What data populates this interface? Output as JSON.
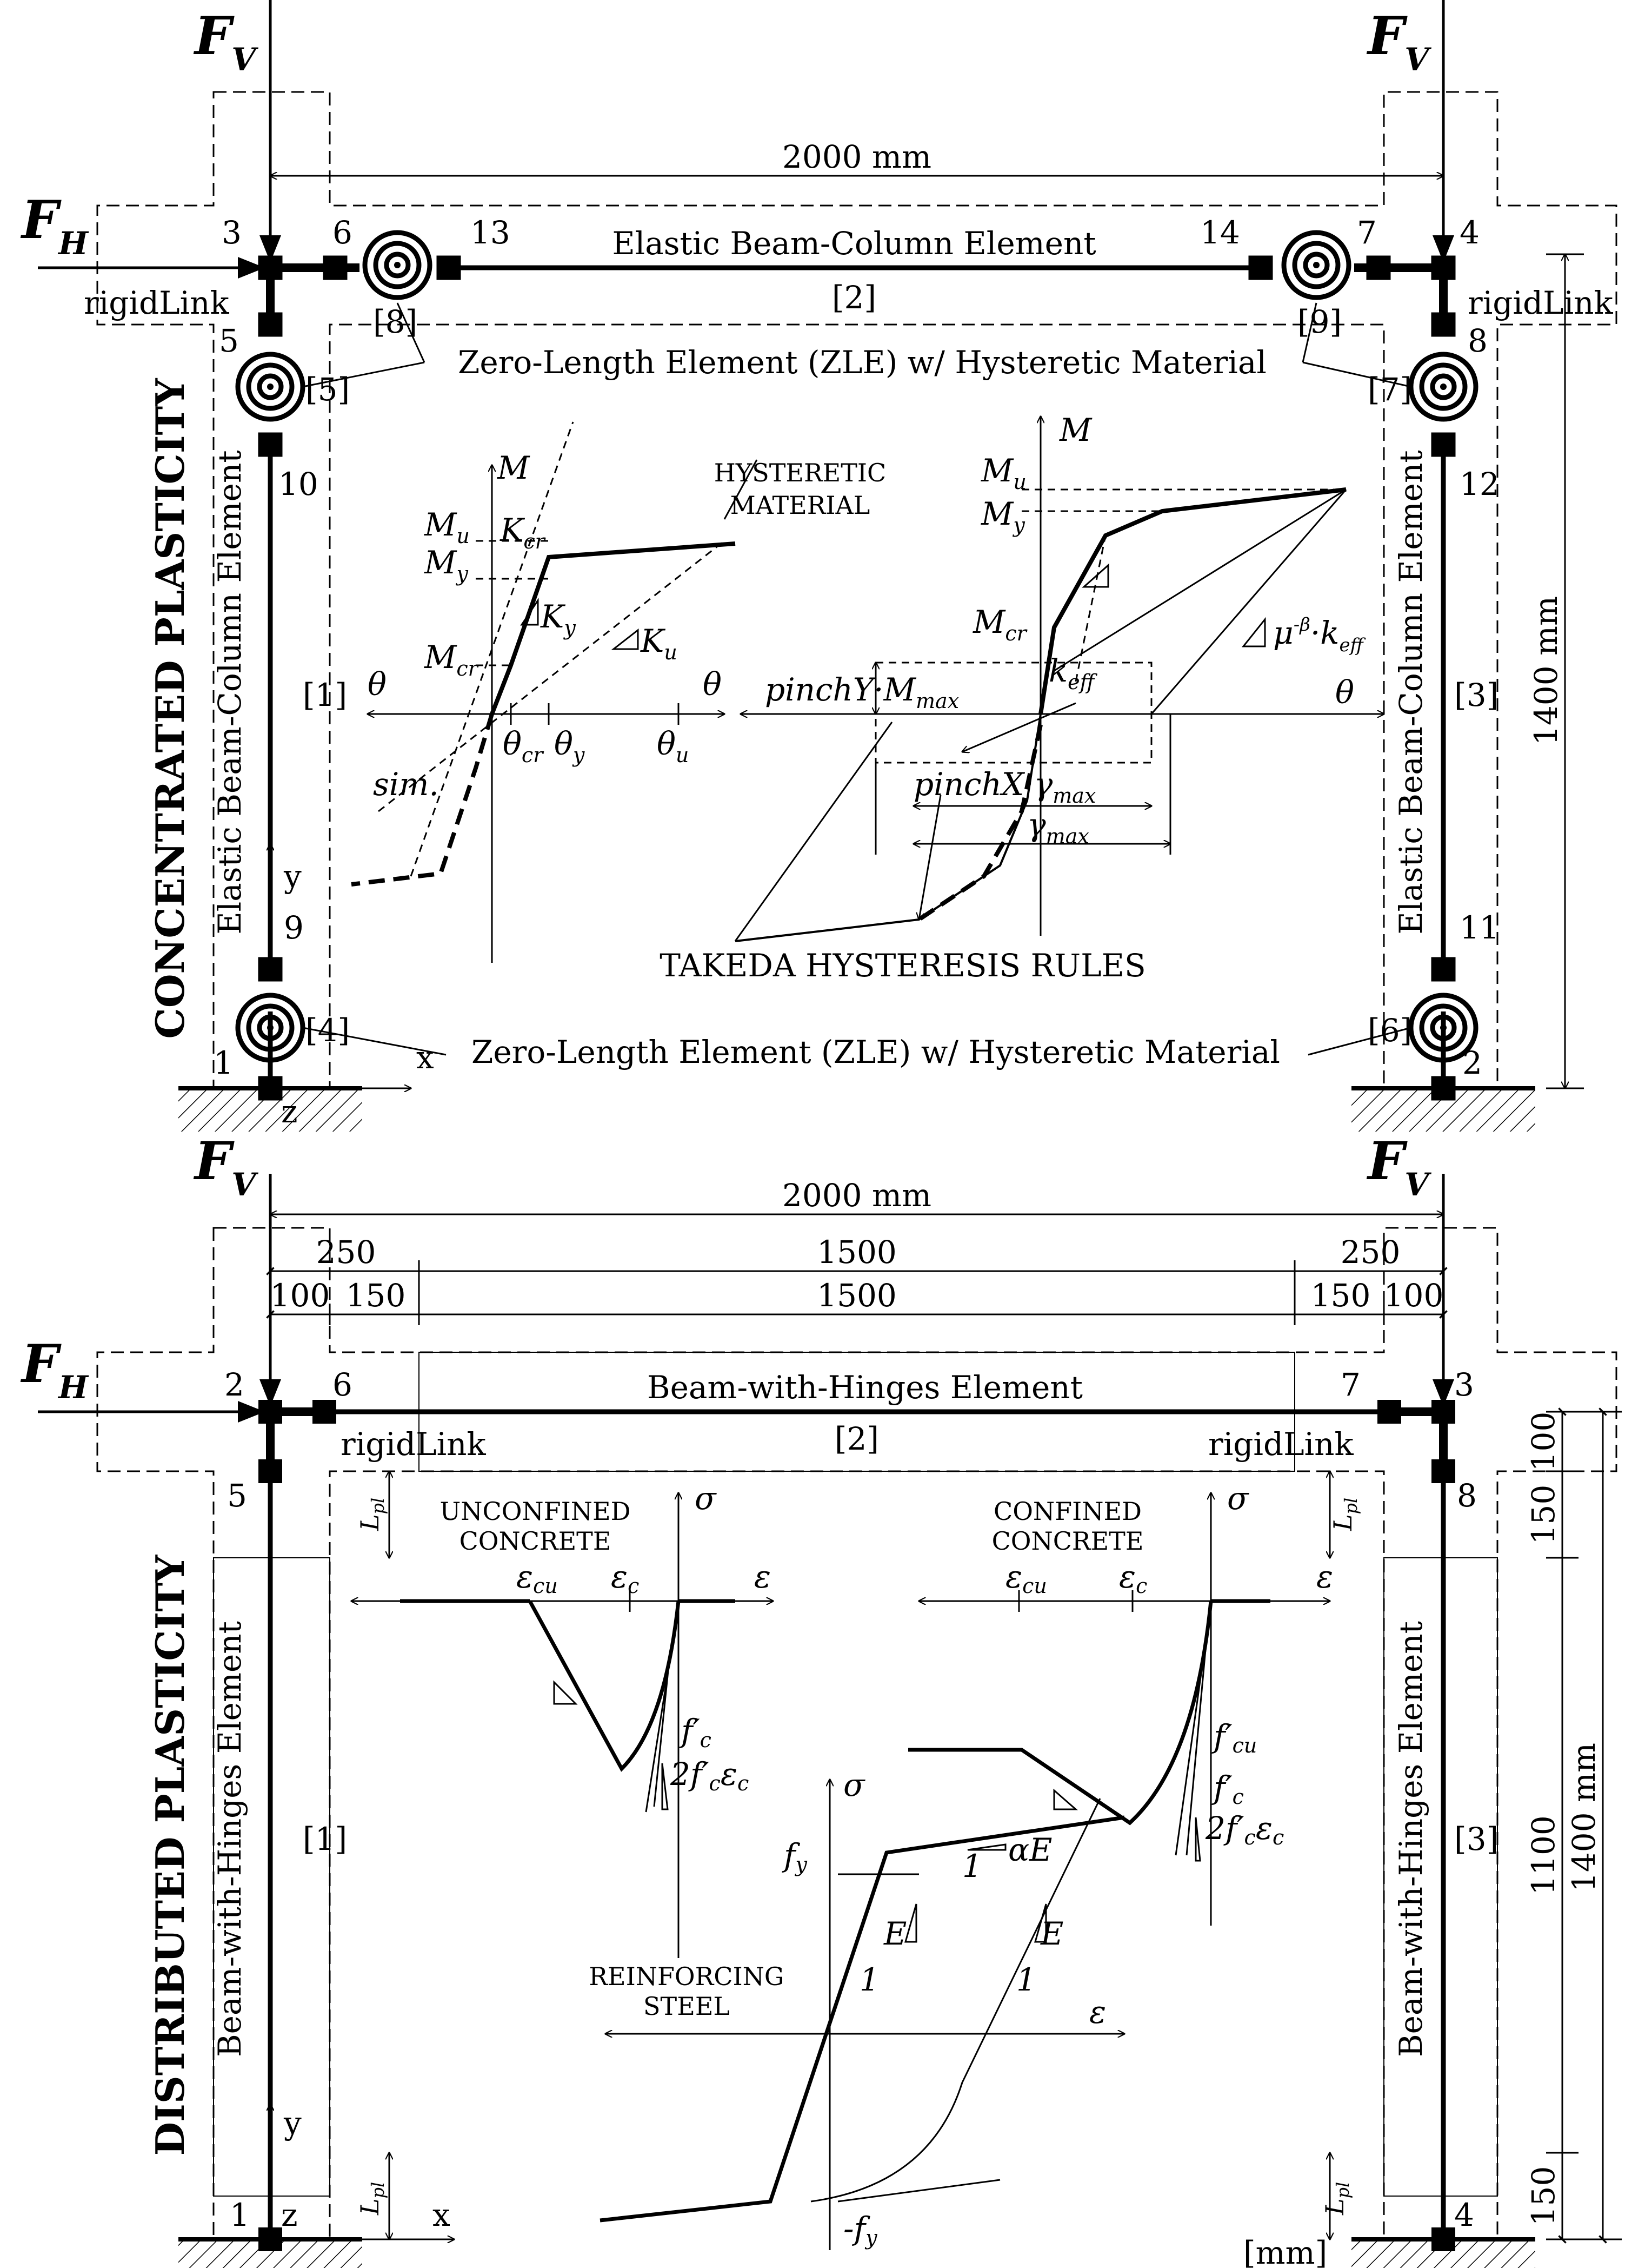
{
  "top": {
    "force_v_left": "F",
    "force_v_right": "F",
    "force_v_sub": "V",
    "force_h": "F",
    "force_h_sub": "H",
    "span_label": "2000 mm",
    "height_label": "1400 mm",
    "side_title": "CONCENTRATED PLASTICITY",
    "beam_label": "Elastic Beam-Column Element",
    "beam_tag": "[2]",
    "column_left_label": "Elastic Beam-Column Element",
    "column_right_label": "Elastic Beam-Column Element",
    "column_left_tag": "[1]",
    "column_right_tag": "[3]",
    "rigid_left": "rigidLink",
    "rigid_right": "rigidLink",
    "zle_top_label": "Zero-Length Element (ZLE) w/ Hysteretic Material",
    "zle_bottom_label": "Zero-Length Element (ZLE) w/ Hysteretic Material",
    "nodes": [
      "1",
      "2",
      "3",
      "4",
      "5",
      "6",
      "7",
      "8",
      "9",
      "10",
      "11",
      "12",
      "13",
      "14"
    ],
    "spring_tags": [
      "[4]",
      "[5]",
      "[6]",
      "[7]",
      "[8]",
      "[9]"
    ],
    "axis_x": "x",
    "axis_y": "y",
    "axis_z": "z",
    "hysteretic": {
      "title_line1": "HYSTERETIC",
      "title_line2": "MATERIAL",
      "axis_m": "M",
      "theta": "θ",
      "mu": "M",
      "mu_sub": "u",
      "my": "M",
      "my_sub": "y",
      "mcr": "M",
      "mcr_sub": "cr",
      "kcr": "K",
      "kcr_sub": "cr",
      "ky": "K",
      "ky_sub": "y",
      "ku": "K",
      "ku_sub": "u",
      "theta_cr_sub": "cr",
      "theta_y_sub": "y",
      "theta_u_sub": "u",
      "sim": "sim."
    },
    "takeda": {
      "title": "TAKEDA HYSTERESIS RULES",
      "axis_m": "M",
      "theta": "θ",
      "pinch_y": "pinchY·M",
      "pinch_y_sub": "max",
      "pinch_x": "pinchX·γ",
      "pinch_x_sub": "max",
      "gamma": "γ",
      "gamma_sub": "max",
      "k_eff": "k",
      "k_eff_sub": "eff",
      "degrade": "μ",
      "degrade_sup": "-β",
      "degrade_tail": "·k",
      "degrade_sub": "eff",
      "mu": "M",
      "mu_sub": "u",
      "my": "M",
      "my_sub": "y",
      "mcr": "M",
      "mcr_sub": "cr"
    }
  },
  "bottom": {
    "force_v_left": "F",
    "force_v_right": "F",
    "force_v_sub": "V",
    "force_h": "F",
    "force_h_sub": "H",
    "span_label": "2000 mm",
    "dims_row1": [
      "250",
      "1500",
      "250"
    ],
    "dims_row2": [
      "100",
      "150",
      "1500",
      "150",
      "100"
    ],
    "height_label": "1400 mm",
    "height_dims": [
      "100",
      "150",
      "1100",
      "150"
    ],
    "units": "[mm]",
    "side_title": "DISTRIBUTED PLASTICITY",
    "beam_label": "Beam-with-Hinges Element",
    "beam_tag": "[2]",
    "column_left_label": "Beam-with-Hinges Element",
    "column_right_label": "Beam-with-Hinges Element",
    "column_left_tag": "[1]",
    "column_right_tag": "[3]",
    "rigid_left": "rigidLink",
    "rigid_right": "rigidLink",
    "nodes": [
      "1",
      "2",
      "3",
      "4",
      "5",
      "6",
      "7",
      "8"
    ],
    "axis_x": "x",
    "axis_y": "y",
    "axis_z": "z",
    "lpl": "L",
    "lpl_sub": "pl",
    "unconfined": {
      "line1": "UNCONFINED",
      "line2": "CONCRETE",
      "sigma": "σ",
      "eps": "ε",
      "eps_cu_sub": "cu",
      "eps_c_sub": "c",
      "fc": "f′",
      "fc_sub": "c",
      "slope": "2f′",
      "slope_sub": "c",
      "slope_tail": "ε",
      "slope_tail_sub": "c"
    },
    "confined": {
      "line1": "CONFINED",
      "line2": "CONCRETE",
      "sigma": "σ",
      "eps": "ε",
      "eps_cu_sub": "cu",
      "eps_c_sub": "c",
      "fcu": "f′",
      "fcu_sub": "cu",
      "fc": "f′",
      "fc_sub": "c",
      "slope": "2f′",
      "slope_sub": "c",
      "slope_tail": "ε",
      "slope_tail_sub": "c"
    },
    "steel": {
      "line1": "REINFORCING",
      "line2": "STEEL",
      "sigma": "σ",
      "eps": "ε",
      "fy": "f",
      "fy_sub": "y",
      "neg_fy": "-f",
      "neg_fy_sub": "y",
      "e": "E",
      "one": "1",
      "alpha_e": "αE"
    }
  }
}
